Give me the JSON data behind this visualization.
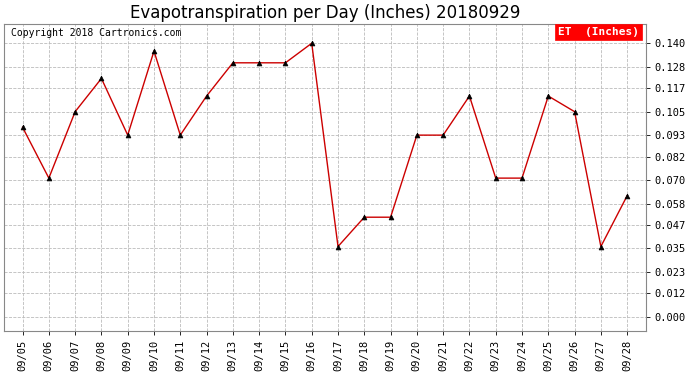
{
  "title": "Evapotranspiration per Day (Inches) 20180929",
  "copyright_text": "Copyright 2018 Cartronics.com",
  "legend_label": "ET  (Inches)",
  "x_labels": [
    "09/05",
    "09/06",
    "09/07",
    "09/08",
    "09/09",
    "09/10",
    "09/11",
    "09/12",
    "09/13",
    "09/14",
    "09/15",
    "09/16",
    "09/17",
    "09/18",
    "09/19",
    "09/20",
    "09/21",
    "09/22",
    "09/23",
    "09/24",
    "09/25",
    "09/26",
    "09/27",
    "09/28"
  ],
  "y_values": [
    0.097,
    0.071,
    0.105,
    0.122,
    0.093,
    0.136,
    0.093,
    0.113,
    0.13,
    0.13,
    0.13,
    0.14,
    0.036,
    0.051,
    0.051,
    0.093,
    0.093,
    0.113,
    0.071,
    0.071,
    0.113,
    0.105,
    0.036,
    0.062
  ],
  "line_color": "#CC0000",
  "marker_color": "#000000",
  "bg_color": "#FFFFFF",
  "plot_bg_color": "#FFFFFF",
  "grid_color": "#BBBBBB",
  "y_ticks": [
    0.0,
    0.012,
    0.023,
    0.035,
    0.047,
    0.058,
    0.07,
    0.082,
    0.093,
    0.105,
    0.117,
    0.128,
    0.14
  ],
  "ylim": [
    -0.007,
    0.15
  ],
  "title_fontsize": 12,
  "tick_fontsize": 7.5,
  "copyright_fontsize": 7,
  "legend_fontsize": 8
}
